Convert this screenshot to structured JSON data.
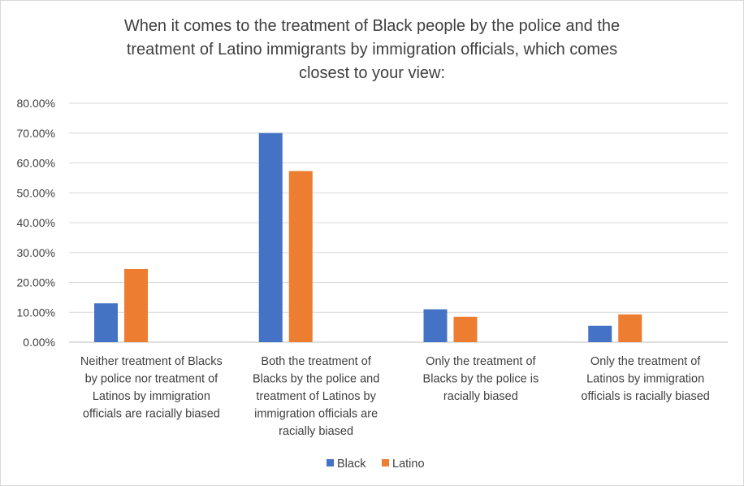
{
  "chart_data": {
    "type": "bar",
    "title": "When it comes to the treatment of Black people by the police and the treatment of Latino immigrants by immigration officials, which comes closest to your view:",
    "title_lines": [
      "When it comes to the treatment of Black people by the police and the",
      "treatment of Latino immigrants by immigration officials, which comes",
      "closest to your view:"
    ],
    "categories": [
      "Neither treatment of Blacks by police nor treatment of Latinos by immigration officials are racially biased",
      "Both the treatment of Blacks by the police and treatment of Latinos by immigration officials are racially biased",
      "Only the treatment of Blacks by the police is racially biased",
      "Only the treatment of Latinos by immigration officials is racially biased"
    ],
    "category_lines": [
      [
        "Neither treatment of Blacks",
        "by police nor treatment of",
        "Latinos by immigration",
        "officials are racially biased"
      ],
      [
        "Both the treatment of",
        "Blacks by the police and",
        "treatment of Latinos by",
        "immigration officials are",
        "racially biased"
      ],
      [
        "Only the treatment of",
        "Blacks by the police is",
        "racially biased"
      ],
      [
        "Only the treatment of",
        "Latinos by immigration",
        "officials is racially biased"
      ]
    ],
    "series": [
      {
        "name": "Black",
        "color": "#4472c4",
        "values": [
          13.0,
          70.0,
          11.0,
          5.5
        ]
      },
      {
        "name": "Latino",
        "color": "#ed7d31",
        "values": [
          24.5,
          57.3,
          8.5,
          9.3
        ]
      }
    ],
    "ylim": [
      0,
      80
    ],
    "yticks": [
      "0.00%",
      "10.00%",
      "20.00%",
      "30.00%",
      "40.00%",
      "50.00%",
      "60.00%",
      "70.00%",
      "80.00%"
    ],
    "xlabel": "",
    "ylabel": "",
    "grid": true,
    "legend": "bottom"
  }
}
